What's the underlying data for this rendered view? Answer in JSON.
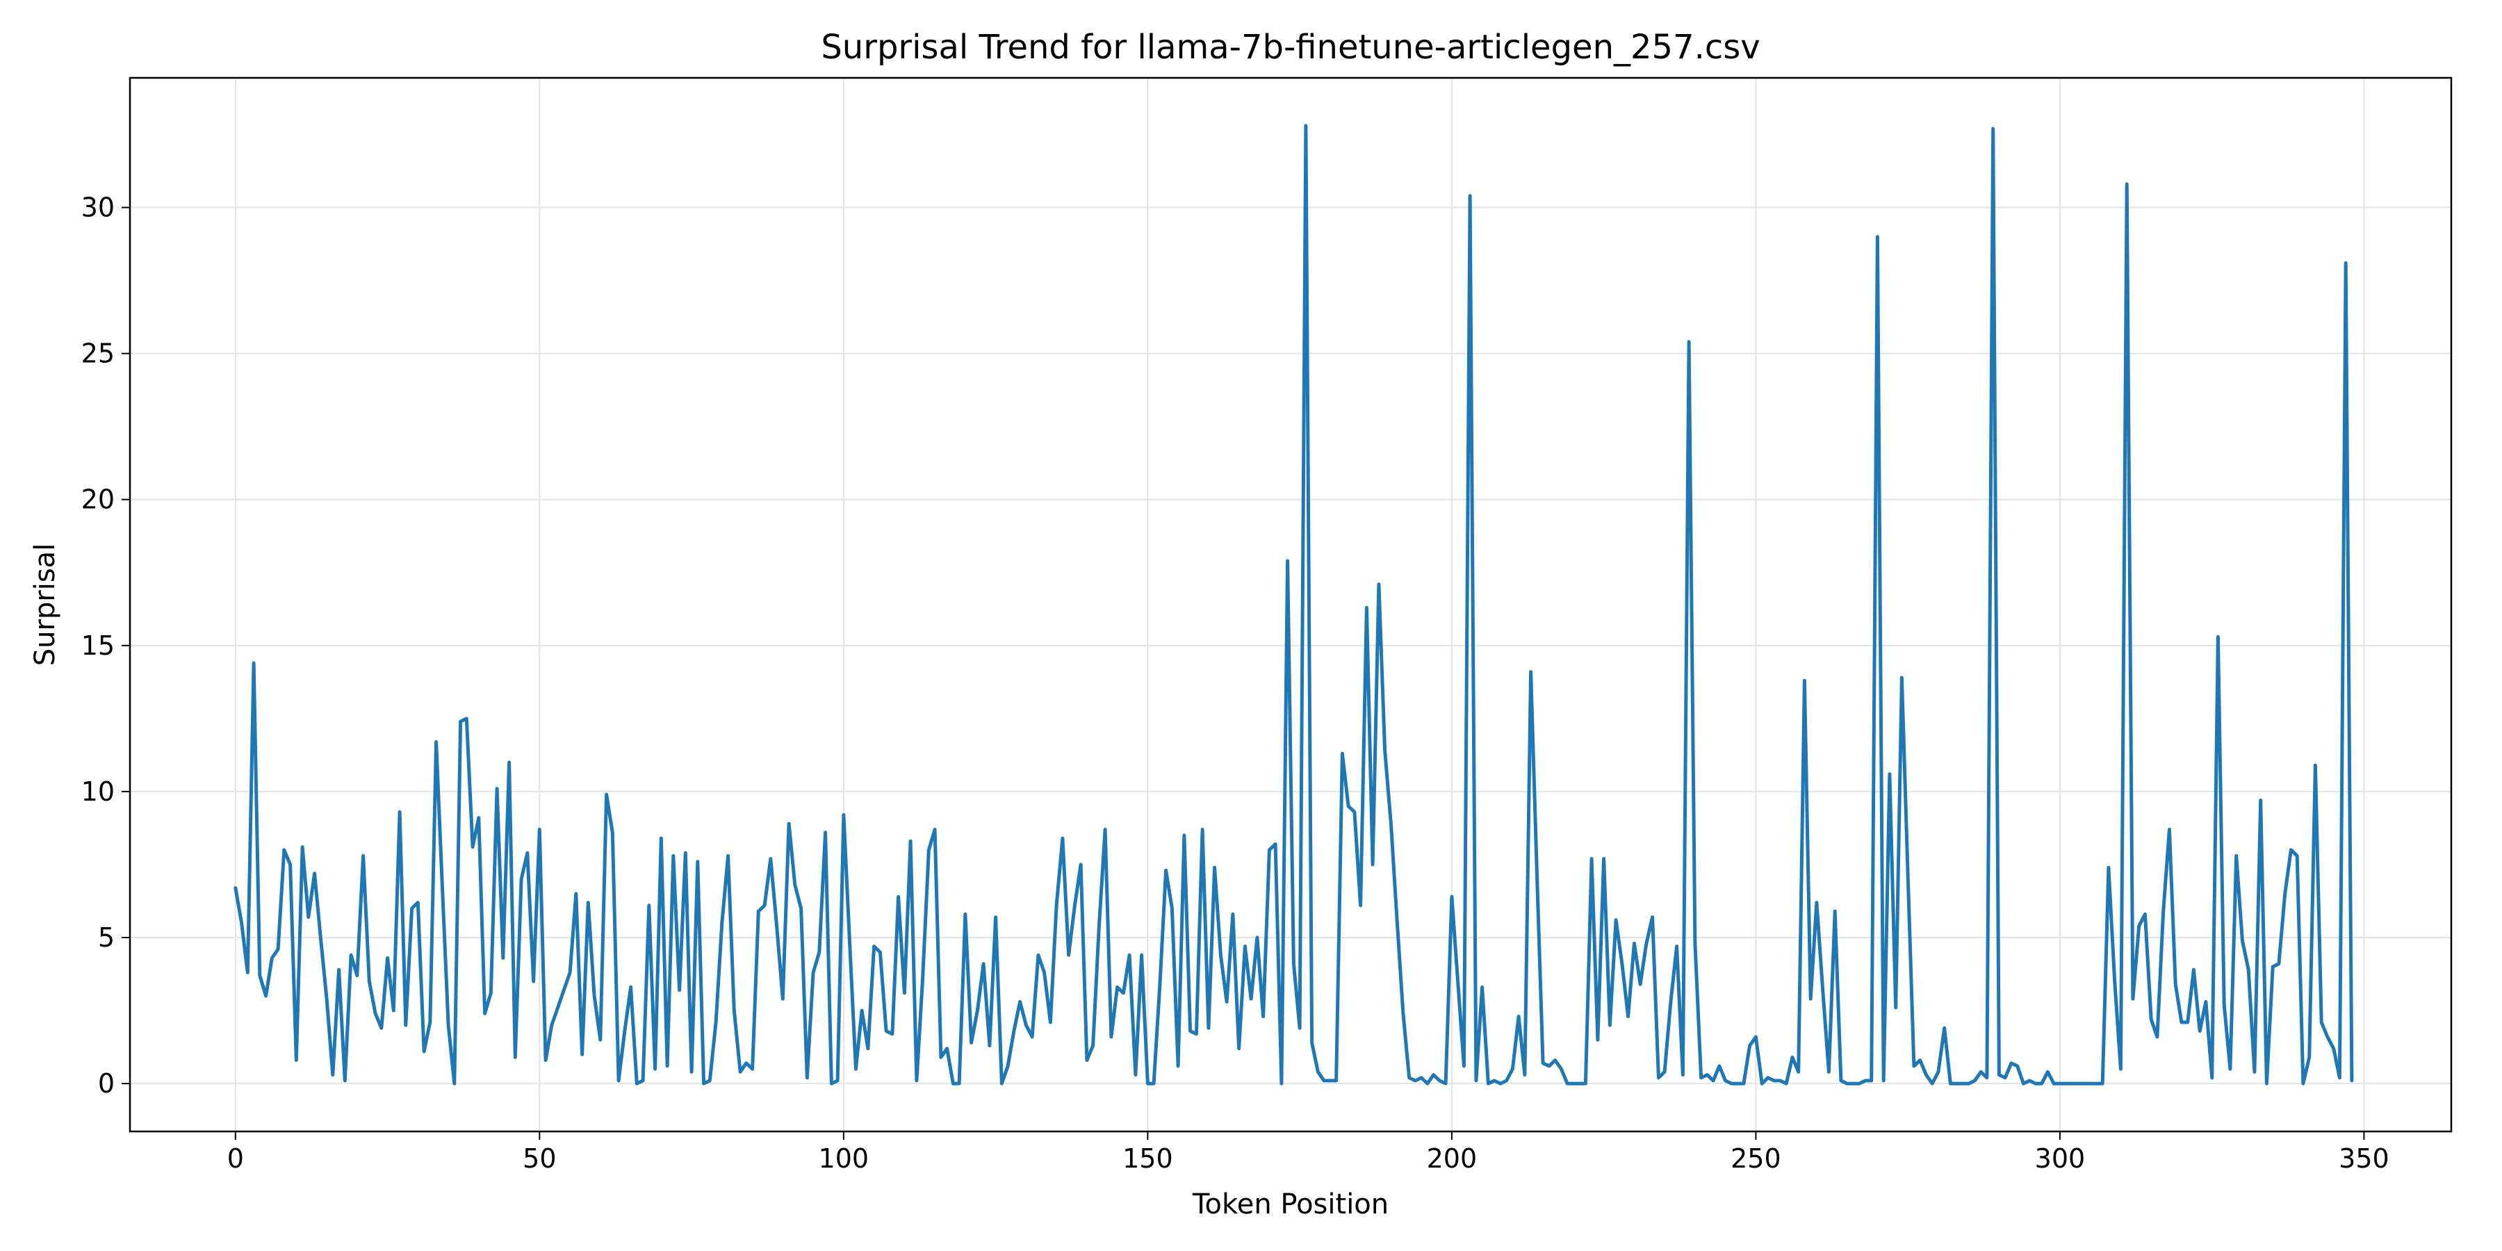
{
  "chart_data": {
    "type": "line",
    "title": "Surprisal Trend for llama-7b-finetune-articlegen_257.csv",
    "xlabel": "Token Position",
    "ylabel": "Surprisal",
    "xlim": [
      -17.35,
      364.35
    ],
    "ylim": [
      -1.64,
      34.44
    ],
    "xticks": [
      0,
      50,
      100,
      150,
      200,
      250,
      300,
      350
    ],
    "yticks": [
      0,
      5,
      10,
      15,
      20,
      25,
      30
    ],
    "xtick_labels": [
      "0",
      "50",
      "100",
      "150",
      "200",
      "250",
      "300",
      "350"
    ],
    "ytick_labels": [
      "0",
      "5",
      "10",
      "15",
      "20",
      "25",
      "30"
    ],
    "grid": true,
    "line_color": "#1f77b4",
    "series": [
      {
        "values": [
          6.7,
          5.5,
          3.8,
          14.4,
          3.7,
          3.0,
          4.3,
          4.6,
          8.0,
          7.5,
          0.8,
          8.1,
          5.7,
          7.2,
          5.0,
          2.9,
          0.3,
          3.9,
          0.1,
          4.4,
          3.7,
          7.8,
          3.5,
          2.4,
          1.9,
          4.3,
          2.5,
          9.3,
          2.0,
          6.0,
          6.2,
          1.1,
          2.1,
          11.7,
          6.8,
          2.0,
          0.0,
          12.4,
          12.5,
          8.1,
          9.1,
          2.4,
          3.1,
          10.1,
          4.3,
          11.0,
          0.9,
          7.0,
          7.9,
          3.5,
          8.7,
          0.8,
          2.0,
          2.6,
          3.2,
          3.8,
          6.5,
          1.0,
          6.2,
          3.0,
          1.5,
          9.9,
          8.6,
          0.1,
          1.8,
          3.3,
          0.0,
          0.1,
          6.1,
          0.5,
          8.4,
          0.6,
          7.8,
          3.2,
          7.9,
          0.4,
          7.6,
          0.0,
          0.1,
          2.1,
          5.5,
          7.8,
          2.5,
          0.4,
          0.7,
          0.5,
          5.9,
          6.1,
          7.7,
          5.4,
          2.9,
          8.9,
          6.8,
          6.0,
          0.2,
          3.8,
          4.5,
          8.6,
          0.0,
          0.1,
          9.2,
          4.8,
          0.5,
          2.5,
          1.2,
          4.7,
          4.5,
          1.8,
          1.7,
          6.4,
          3.1,
          8.3,
          0.1,
          3.6,
          8.0,
          8.7,
          0.9,
          1.2,
          0.0,
          0.0,
          5.8,
          1.4,
          2.5,
          4.1,
          1.3,
          5.7,
          0.0,
          0.6,
          1.8,
          2.8,
          2.0,
          1.6,
          4.4,
          3.8,
          2.1,
          6.1,
          8.4,
          4.4,
          6.1,
          7.5,
          0.8,
          1.3,
          5.4,
          8.7,
          1.6,
          3.3,
          3.1,
          4.4,
          0.3,
          4.4,
          0.0,
          0.0,
          3.4,
          7.3,
          6.0,
          0.6,
          8.5,
          1.8,
          1.7,
          8.7,
          1.9,
          7.4,
          4.4,
          2.8,
          5.8,
          1.2,
          4.7,
          2.9,
          5.0,
          2.3,
          8.0,
          8.2,
          0.0,
          17.9,
          4.1,
          1.9,
          32.8,
          1.4,
          0.4,
          0.1,
          0.1,
          0.1,
          11.3,
          9.5,
          9.3,
          6.1,
          16.3,
          7.5,
          17.1,
          11.4,
          8.9,
          5.6,
          2.4,
          0.2,
          0.1,
          0.2,
          0.0,
          0.3,
          0.1,
          0.0,
          6.4,
          3.5,
          0.6,
          30.4,
          0.1,
          3.3,
          0.0,
          0.1,
          0.0,
          0.1,
          0.5,
          2.3,
          0.3,
          14.1,
          7.2,
          0.7,
          0.6,
          0.8,
          0.5,
          0.0,
          0.0,
          0.0,
          0.0,
          7.7,
          1.5,
          7.7,
          2.0,
          5.6,
          4.1,
          2.3,
          4.8,
          3.4,
          4.8,
          5.7,
          0.2,
          0.4,
          2.8,
          4.7,
          0.3,
          25.4,
          4.8,
          0.2,
          0.3,
          0.1,
          0.6,
          0.1,
          0.0,
          0.0,
          0.0,
          1.3,
          1.6,
          0.0,
          0.2,
          0.1,
          0.1,
          0.0,
          0.9,
          0.4,
          13.8,
          2.9,
          6.2,
          3.2,
          0.4,
          5.9,
          0.1,
          0.0,
          0.0,
          0.0,
          0.1,
          0.1,
          29.0,
          0.1,
          10.6,
          2.6,
          13.9,
          7.1,
          0.6,
          0.8,
          0.3,
          0.0,
          0.4,
          1.9,
          0.0,
          0.0,
          0.0,
          0.0,
          0.1,
          0.4,
          0.2,
          32.7,
          0.3,
          0.2,
          0.7,
          0.6,
          0.0,
          0.1,
          0.0,
          0.0,
          0.4,
          0.0,
          0.0,
          0.0,
          0.0,
          0.0,
          0.0,
          0.0,
          0.0,
          0.0,
          7.4,
          3.5,
          0.5,
          30.8,
          2.9,
          5.4,
          5.8,
          2.2,
          1.6,
          5.9,
          8.7,
          3.4,
          2.1,
          2.1,
          3.9,
          1.8,
          2.8,
          0.2,
          15.3,
          2.7,
          0.5,
          7.8,
          4.9,
          3.9,
          0.4,
          9.7,
          0.0,
          4.0,
          4.1,
          6.5,
          8.0,
          7.8,
          0.0,
          0.9,
          10.9,
          2.1,
          1.6,
          1.2,
          0.2,
          28.1,
          0.1
        ]
      }
    ]
  }
}
